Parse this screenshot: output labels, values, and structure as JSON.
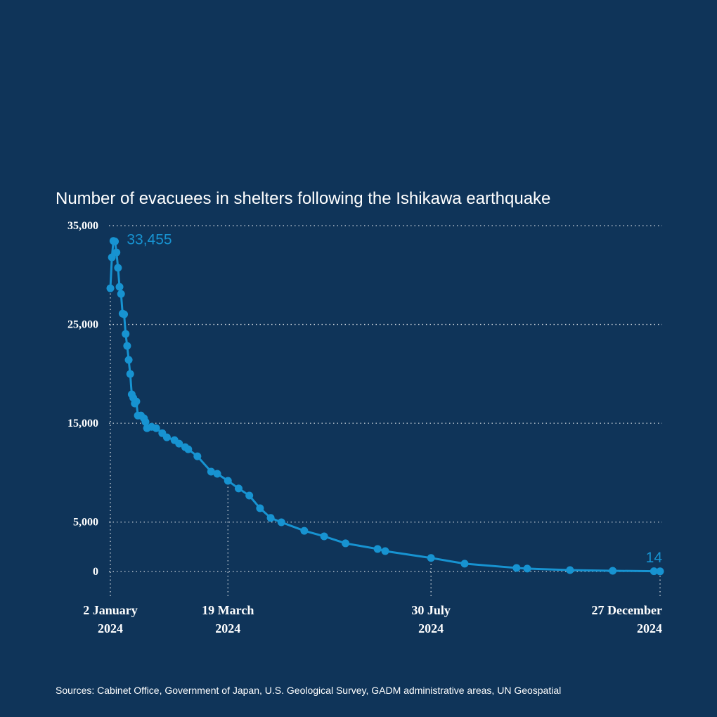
{
  "chart_data": {
    "type": "line",
    "title": "Number of evacuees in shelters following the Ishikawa earthquake",
    "source": "Sources: Cabinet Office, Government of Japan, U.S. Geological Survey, GADM administrative areas, UN Geospatial",
    "color": "#1793d1",
    "x": [
      "2024-01-02",
      "2024-01-03",
      "2024-01-04",
      "2024-01-05",
      "2024-01-06",
      "2024-01-07",
      "2024-01-08",
      "2024-01-09",
      "2024-01-10",
      "2024-01-11",
      "2024-01-12",
      "2024-01-13",
      "2024-01-14",
      "2024-01-15",
      "2024-01-16",
      "2024-01-17",
      "2024-01-18",
      "2024-01-19",
      "2024-01-20",
      "2024-01-22",
      "2024-01-24",
      "2024-01-25",
      "2024-01-26",
      "2024-01-29",
      "2024-02-01",
      "2024-02-05",
      "2024-02-08",
      "2024-02-13",
      "2024-02-16",
      "2024-02-20",
      "2024-02-22",
      "2024-02-28",
      "2024-03-08",
      "2024-03-12",
      "2024-03-19",
      "2024-03-26",
      "2024-04-02",
      "2024-04-09",
      "2024-04-16",
      "2024-04-23",
      "2024-05-08",
      "2024-05-21",
      "2024-06-04",
      "2024-06-25",
      "2024-06-30",
      "2024-07-30",
      "2024-08-21",
      "2024-09-24",
      "2024-10-01",
      "2024-10-29",
      "2024-11-26",
      "2024-12-23",
      "2024-12-27"
    ],
    "values": [
      28660,
      31790,
      33455,
      33400,
      32290,
      30730,
      28800,
      28090,
      26100,
      26030,
      24040,
      22830,
      21410,
      19990,
      17930,
      17570,
      17000,
      17210,
      15780,
      15780,
      15500,
      15140,
      14500,
      14640,
      14500,
      14000,
      13580,
      13290,
      12940,
      12580,
      12370,
      11660,
      10100,
      9890,
      9180,
      8400,
      7680,
      6400,
      5420,
      4980,
      4120,
      3560,
      2850,
      2280,
      2060,
      1370,
      790,
      360,
      290,
      140,
      70,
      30,
      14
    ],
    "value_labels": [
      null,
      null,
      "33,455",
      null,
      null,
      null,
      null,
      null,
      null,
      null,
      null,
      null,
      null,
      null,
      null,
      null,
      null,
      null,
      null,
      null,
      null,
      null,
      null,
      null,
      null,
      null,
      null,
      null,
      null,
      null,
      null,
      null,
      null,
      null,
      null,
      null,
      null,
      null,
      null,
      null,
      null,
      null,
      null,
      null,
      null,
      null,
      null,
      null,
      null,
      null,
      null,
      null,
      "14"
    ],
    "xlim": [
      "2024-01-02",
      "2024-12-27"
    ],
    "xticks": [
      {
        "value": "2024-01-02",
        "label": [
          "2 January",
          "2024"
        ]
      },
      {
        "value": "2024-03-19",
        "label": [
          "19 March",
          "2024"
        ]
      },
      {
        "value": "2024-07-30",
        "label": [
          "30 July",
          "2024"
        ]
      },
      {
        "value": "2024-12-27",
        "label": [
          "27 December",
          "2024"
        ]
      }
    ],
    "ylim": [
      0,
      35000
    ],
    "yticks": [
      0,
      {
        "value": 5000,
        "label": "5,000"
      },
      {
        "value": 15000,
        "label": "15,000"
      },
      {
        "value": 25000,
        "label": "25,000"
      },
      {
        "value": 35000,
        "label": "35,000"
      }
    ],
    "grid": true
  }
}
